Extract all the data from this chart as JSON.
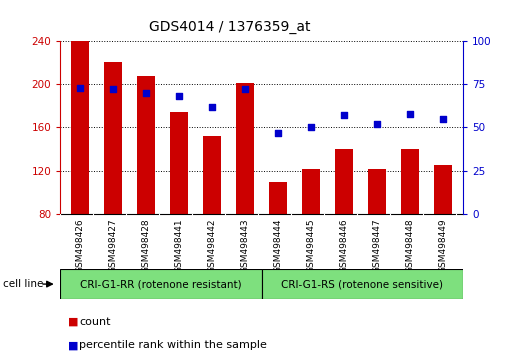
{
  "title": "GDS4014 / 1376359_at",
  "categories": [
    "GSM498426",
    "GSM498427",
    "GSM498428",
    "GSM498441",
    "GSM498442",
    "GSM498443",
    "GSM498444",
    "GSM498445",
    "GSM498446",
    "GSM498447",
    "GSM498448",
    "GSM498449"
  ],
  "bar_values": [
    240,
    220,
    207,
    174,
    152,
    201,
    110,
    122,
    140,
    122,
    140,
    125
  ],
  "bar_bottom": 80,
  "dot_values": [
    73,
    72,
    70,
    68,
    62,
    72,
    47,
    50,
    57,
    52,
    58,
    55
  ],
  "bar_color": "#cc0000",
  "dot_color": "#0000cc",
  "ylim_left": [
    80,
    240
  ],
  "ylim_right": [
    0,
    100
  ],
  "yticks_left": [
    80,
    120,
    160,
    200,
    240
  ],
  "yticks_right": [
    0,
    25,
    50,
    75,
    100
  ],
  "group1_label": "CRI-G1-RR (rotenone resistant)",
  "group2_label": "CRI-G1-RS (rotenone sensitive)",
  "group1_count": 6,
  "group2_count": 6,
  "cell_line_label": "cell line",
  "legend_count_label": "count",
  "legend_percentile_label": "percentile rank within the sample",
  "group_bg_color": "#7ee07e",
  "tick_bg_color": "#cccccc",
  "bar_width": 0.55,
  "title_fontsize": 10,
  "tick_fontsize": 7.5,
  "label_fontsize": 8,
  "legend_fontsize": 8
}
